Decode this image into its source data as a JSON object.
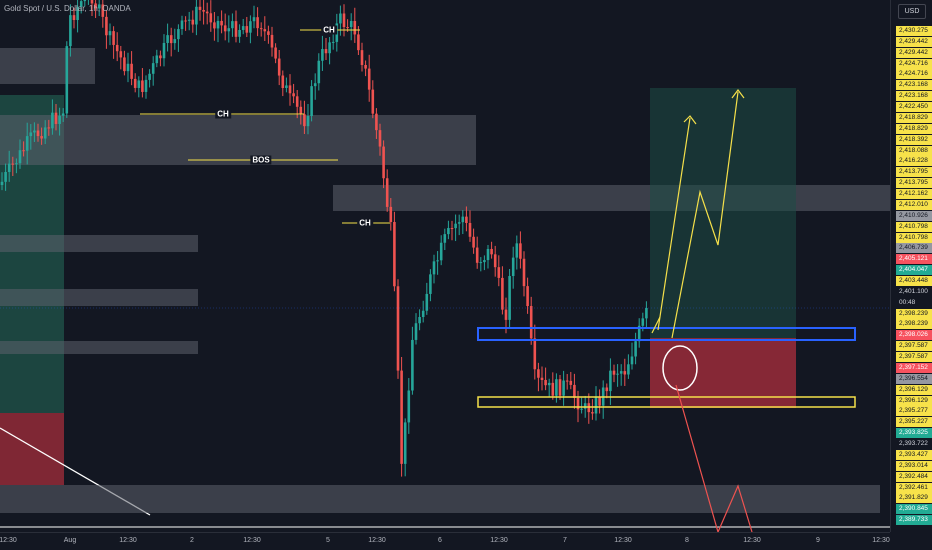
{
  "symbol": {
    "title": "Gold Spot / U.S. Dollar, 1h, OANDA"
  },
  "axis": {
    "currency": "USD"
  },
  "price_labels": [
    {
      "text": "2,430.275",
      "bg": "#f7e24a",
      "fg": "#131722"
    },
    {
      "text": "2,429.442",
      "bg": "#f7e24a",
      "fg": "#131722"
    },
    {
      "text": "2,429.442",
      "bg": "#f7e24a",
      "fg": "#131722"
    },
    {
      "text": "2,424.716",
      "bg": "#f7e24a",
      "fg": "#131722"
    },
    {
      "text": "2,424.716",
      "bg": "#f7e24a",
      "fg": "#131722"
    },
    {
      "text": "2,423.168",
      "bg": "#f7e24a",
      "fg": "#131722"
    },
    {
      "text": "2,423.168",
      "bg": "#f7e24a",
      "fg": "#131722"
    },
    {
      "text": "2,422.450",
      "bg": "#f7e24a",
      "fg": "#131722"
    },
    {
      "text": "2,418.829",
      "bg": "#f7e24a",
      "fg": "#131722"
    },
    {
      "text": "2,418.829",
      "bg": "#f7e24a",
      "fg": "#131722"
    },
    {
      "text": "2,418.392",
      "bg": "#f7e24a",
      "fg": "#131722"
    },
    {
      "text": "2,418.088",
      "bg": "#f7e24a",
      "fg": "#131722"
    },
    {
      "text": "2,416.228",
      "bg": "#f7e24a",
      "fg": "#131722"
    },
    {
      "text": "2,413.795",
      "bg": "#f7e24a",
      "fg": "#131722"
    },
    {
      "text": "2,413.795",
      "bg": "#f7e24a",
      "fg": "#131722"
    },
    {
      "text": "2,412.162",
      "bg": "#f7e24a",
      "fg": "#131722"
    },
    {
      "text": "2,412.010",
      "bg": "#f7e24a",
      "fg": "#131722"
    },
    {
      "text": "2,410.926",
      "bg": "#9598a1",
      "fg": "#131722"
    },
    {
      "text": "2,410.798",
      "bg": "#f7e24a",
      "fg": "#131722"
    },
    {
      "text": "2,410.798",
      "bg": "#f7e24a",
      "fg": "#131722"
    },
    {
      "text": "2,406.739",
      "bg": "#9598a1",
      "fg": "#131722"
    },
    {
      "text": "2,405.121",
      "bg": "#f7525f",
      "fg": "#ffffff"
    },
    {
      "text": "2,404.047",
      "bg": "#22ab94",
      "fg": "#ffffff"
    },
    {
      "text": "2,403.448",
      "bg": "#f7e24a",
      "fg": "#131722"
    },
    {
      "text": "2,401.100",
      "bg": "#131722",
      "fg": "#d1d4dc"
    },
    {
      "text": "00:48",
      "bg": "#131722",
      "fg": "#d1d4dc"
    },
    {
      "text": "2,398.239",
      "bg": "#f7e24a",
      "fg": "#131722"
    },
    {
      "text": "2,398.239",
      "bg": "#f7e24a",
      "fg": "#131722"
    },
    {
      "text": "2,398.026",
      "bg": "#f7525f",
      "fg": "#ffffff"
    },
    {
      "text": "2,397.587",
      "bg": "#f7e24a",
      "fg": "#131722"
    },
    {
      "text": "2,397.587",
      "bg": "#f7e24a",
      "fg": "#131722"
    },
    {
      "text": "2,397.152",
      "bg": "#f7525f",
      "fg": "#ffffff"
    },
    {
      "text": "2,396.554",
      "bg": "#9598a1",
      "fg": "#131722"
    },
    {
      "text": "2,396.129",
      "bg": "#f7e24a",
      "fg": "#131722"
    },
    {
      "text": "2,396.129",
      "bg": "#f7e24a",
      "fg": "#131722"
    },
    {
      "text": "2,395.277",
      "bg": "#f7e24a",
      "fg": "#131722"
    },
    {
      "text": "2,395.227",
      "bg": "#f7e24a",
      "fg": "#131722"
    },
    {
      "text": "2,393.825",
      "bg": "#22ab94",
      "fg": "#ffffff"
    },
    {
      "text": "2,393.722",
      "bg": "#131722",
      "fg": "#d1d4dc"
    },
    {
      "text": "2,393.427",
      "bg": "#f7e24a",
      "fg": "#131722"
    },
    {
      "text": "2,393.014",
      "bg": "#f7e24a",
      "fg": "#131722"
    },
    {
      "text": "2,392.484",
      "bg": "#f7e24a",
      "fg": "#131722"
    },
    {
      "text": "2,392.461",
      "bg": "#f7e24a",
      "fg": "#131722"
    },
    {
      "text": "2,391.829",
      "bg": "#f7e24a",
      "fg": "#131722"
    },
    {
      "text": "2,390.845",
      "bg": "#22ab94",
      "fg": "#ffffff"
    },
    {
      "text": "2,389.733",
      "bg": "#22ab94",
      "fg": "#ffffff"
    }
  ],
  "time_labels": [
    "12:30",
    "Aug",
    "12:30",
    "2",
    "12:30",
    "5",
    "12:30",
    "6",
    "12:30",
    "7",
    "12:30",
    "8",
    "12:30",
    "9",
    "12:30"
  ],
  "annotations": {
    "ch1": "CH",
    "ch2": "CH",
    "ch3": "CH",
    "bos": "BOS"
  },
  "colors": {
    "background": "#131722",
    "bull": "#26a69a",
    "bear": "#ef5350",
    "zone_gray": "#5d606b",
    "target_zone": "#1e4d45",
    "stop_zone": "#9b2c3a",
    "arrow_yellow": "#f5e04a",
    "arrow_red": "#ef5350",
    "box_blue": "#2962ff",
    "box_yellow": "#f5e04a"
  }
}
